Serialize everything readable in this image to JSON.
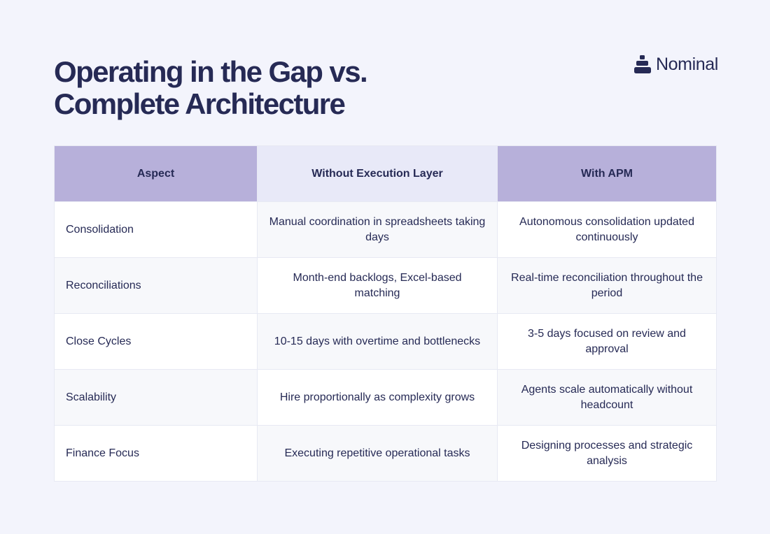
{
  "title": {
    "line1": "Operating in the Gap vs.",
    "line2": "Complete Architecture"
  },
  "logo": {
    "icon": "stacked-layers-icon",
    "text": "Nominal"
  },
  "table": {
    "headers": [
      "Aspect",
      "Without Execution Layer",
      "With APM"
    ],
    "rows": [
      [
        "Consolidation",
        "Manual coordination in spreadsheets taking days",
        "Autonomous consolidation updated continuously"
      ],
      [
        "Reconciliations",
        "Month-end backlogs, Excel-based matching",
        "Real-time reconciliation throughout the period"
      ],
      [
        "Close Cycles",
        "10-15 days with overtime and bottlenecks",
        "3-5 days focused on review and approval"
      ],
      [
        "Scalability",
        "Hire proportionally as complexity grows",
        "Agents scale automatically without headcount"
      ],
      [
        "Finance Focus",
        "Executing repetitive operational tasks",
        "Designing processes and strategic analysis"
      ]
    ]
  },
  "colors": {
    "background": "#f3f4fc",
    "text": "#262a55",
    "header_purple": "#b7b0da",
    "header_light": "#e8e9f8",
    "row_white": "#ffffff",
    "row_tint": "#f7f8fb"
  }
}
